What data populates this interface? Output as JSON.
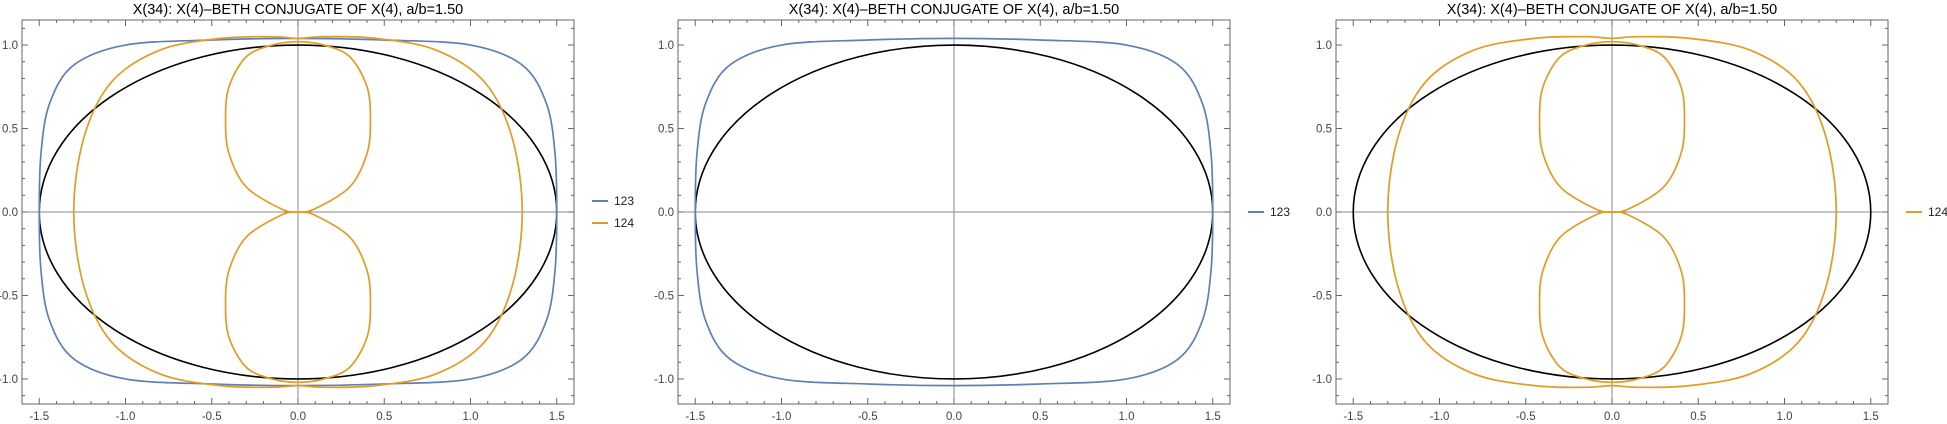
{
  "colors": {
    "ellipse": "#000000",
    "s123": "#5E81B5",
    "s124": "#E19C24",
    "axis": "#888888",
    "frame": "#666666"
  },
  "chart_data": [
    {
      "type": "line",
      "title": "X(34): X(4)–BETH CONJUGATE OF X(4), a/b=1.50",
      "xlim": [
        -1.6,
        1.6
      ],
      "ylim": [
        -1.15,
        1.15
      ],
      "xticks": [
        "-1.5",
        "-1.0",
        "-0.5",
        "0.0",
        "0.5",
        "1.0",
        "1.5"
      ],
      "yticks": [
        "-1.0",
        "-0.5",
        "0.0",
        "0.5",
        "1.0"
      ],
      "reference_ellipse": {
        "a": 1.5,
        "b": 1.0
      },
      "series": [
        {
          "name": "123",
          "color_key": "s123",
          "x": [
            1.5,
            1.49,
            1.44,
            1.3,
            1.0,
            0.5,
            0.0,
            -0.5,
            -1.0,
            -1.3,
            -1.44,
            -1.49,
            -1.5,
            -1.49,
            -1.44,
            -1.3,
            -1.0,
            -0.5,
            0.0,
            0.5,
            1.0,
            1.3,
            1.44,
            1.49,
            1.5
          ],
          "y": [
            0.0,
            0.35,
            0.65,
            0.88,
            1.0,
            1.03,
            1.04,
            1.03,
            1.0,
            0.88,
            0.65,
            0.35,
            0.0,
            -0.35,
            -0.65,
            -0.88,
            -1.0,
            -1.03,
            -1.04,
            -1.03,
            -1.0,
            -0.88,
            -0.65,
            -0.35,
            0.0
          ]
        },
        {
          "name": "124",
          "color_key": "s124",
          "x": [
            1.3,
            1.24,
            1.08,
            0.8,
            0.45,
            0.15,
            0.0,
            -0.15,
            -0.45,
            -0.8,
            -1.08,
            -1.24,
            -1.3,
            -1.24,
            -1.08,
            -0.8,
            -0.45,
            -0.15,
            0.0,
            0.15,
            0.45,
            0.8,
            1.08,
            1.24,
            1.3
          ],
          "y": [
            0.0,
            0.45,
            0.78,
            0.97,
            1.04,
            1.05,
            1.04,
            1.05,
            1.04,
            0.97,
            0.78,
            0.45,
            0.0,
            -0.45,
            -0.78,
            -0.97,
            -1.04,
            -1.05,
            -1.04,
            -1.05,
            -1.04,
            -0.97,
            -0.78,
            -0.45,
            0.0
          ]
        },
        {
          "name": "",
          "color_key": "s124",
          "x": [
            0.0,
            0.1,
            0.3,
            0.4,
            0.42,
            0.4,
            0.3,
            0.15,
            0.0,
            -0.15,
            -0.3,
            -0.4,
            -0.42,
            -0.4,
            -0.3,
            -0.1,
            0.0
          ],
          "y": [
            0.0,
            0.02,
            0.15,
            0.35,
            0.55,
            0.75,
            0.93,
            1.0,
            1.02,
            1.0,
            0.93,
            0.75,
            0.55,
            0.35,
            0.15,
            0.02,
            0.0
          ]
        },
        {
          "name": "",
          "color_key": "s124",
          "x": [
            0.0,
            0.1,
            0.3,
            0.4,
            0.42,
            0.4,
            0.3,
            0.15,
            0.0,
            -0.15,
            -0.3,
            -0.4,
            -0.42,
            -0.4,
            -0.3,
            -0.1,
            0.0
          ],
          "y": [
            0.0,
            -0.02,
            -0.15,
            -0.35,
            -0.55,
            -0.75,
            -0.93,
            -1.0,
            -1.02,
            -1.0,
            -0.93,
            -0.75,
            -0.55,
            -0.35,
            -0.15,
            -0.02,
            0.0
          ]
        }
      ]
    },
    {
      "type": "line",
      "title": "X(34): X(4)–BETH CONJUGATE OF X(4), a/b=1.50",
      "xlim": [
        -1.6,
        1.6
      ],
      "ylim": [
        -1.15,
        1.15
      ],
      "xticks": [
        "-1.5",
        "-1.0",
        "-0.5",
        "0.0",
        "0.5",
        "1.0",
        "1.5"
      ],
      "yticks": [
        "-1.0",
        "-0.5",
        "0.0",
        "0.5",
        "1.0"
      ],
      "reference_ellipse": {
        "a": 1.5,
        "b": 1.0
      },
      "series": [
        {
          "name": "123",
          "color_key": "s123",
          "x": [
            1.5,
            1.49,
            1.44,
            1.3,
            1.0,
            0.5,
            0.0,
            -0.5,
            -1.0,
            -1.3,
            -1.44,
            -1.49,
            -1.5,
            -1.49,
            -1.44,
            -1.3,
            -1.0,
            -0.5,
            0.0,
            0.5,
            1.0,
            1.3,
            1.44,
            1.49,
            1.5
          ],
          "y": [
            0.0,
            0.35,
            0.65,
            0.88,
            1.0,
            1.03,
            1.04,
            1.03,
            1.0,
            0.88,
            0.65,
            0.35,
            0.0,
            -0.35,
            -0.65,
            -0.88,
            -1.0,
            -1.03,
            -1.04,
            -1.03,
            -1.0,
            -0.88,
            -0.65,
            -0.35,
            0.0
          ]
        }
      ]
    },
    {
      "type": "line",
      "title": "X(34): X(4)–BETH CONJUGATE OF X(4), a/b=1.50",
      "xlim": [
        -1.6,
        1.6
      ],
      "ylim": [
        -1.15,
        1.15
      ],
      "xticks": [
        "-1.5",
        "-1.0",
        "-0.5",
        "0.0",
        "0.5",
        "1.0",
        "1.5"
      ],
      "yticks": [
        "-1.0",
        "-0.5",
        "0.0",
        "0.5",
        "1.0"
      ],
      "reference_ellipse": {
        "a": 1.5,
        "b": 1.0
      },
      "series": [
        {
          "name": "124",
          "color_key": "s124",
          "x": [
            1.3,
            1.24,
            1.08,
            0.8,
            0.45,
            0.15,
            0.0,
            -0.15,
            -0.45,
            -0.8,
            -1.08,
            -1.24,
            -1.3,
            -1.24,
            -1.08,
            -0.8,
            -0.45,
            -0.15,
            0.0,
            0.15,
            0.45,
            0.8,
            1.08,
            1.24,
            1.3
          ],
          "y": [
            0.0,
            0.45,
            0.78,
            0.97,
            1.04,
            1.05,
            1.04,
            1.05,
            1.04,
            0.97,
            0.78,
            0.45,
            0.0,
            -0.45,
            -0.78,
            -0.97,
            -1.04,
            -1.05,
            -1.04,
            -1.05,
            -1.04,
            -0.97,
            -0.78,
            -0.45,
            0.0
          ]
        },
        {
          "name": "",
          "color_key": "s124",
          "x": [
            0.0,
            0.1,
            0.3,
            0.4,
            0.42,
            0.4,
            0.3,
            0.15,
            0.0,
            -0.15,
            -0.3,
            -0.4,
            -0.42,
            -0.4,
            -0.3,
            -0.1,
            0.0
          ],
          "y": [
            0.0,
            0.02,
            0.15,
            0.35,
            0.55,
            0.75,
            0.93,
            1.0,
            1.02,
            1.0,
            0.93,
            0.75,
            0.55,
            0.35,
            0.15,
            0.02,
            0.0
          ]
        },
        {
          "name": "",
          "color_key": "s124",
          "x": [
            0.0,
            0.1,
            0.3,
            0.4,
            0.42,
            0.4,
            0.3,
            0.15,
            0.0,
            -0.15,
            -0.3,
            -0.4,
            -0.42,
            -0.4,
            -0.3,
            -0.1,
            0.0
          ],
          "y": [
            0.0,
            -0.02,
            -0.15,
            -0.35,
            -0.55,
            -0.75,
            -0.93,
            -1.0,
            -1.02,
            -1.0,
            -0.93,
            -0.75,
            -0.55,
            -0.35,
            -0.15,
            -0.02,
            0.0
          ]
        }
      ]
    }
  ]
}
